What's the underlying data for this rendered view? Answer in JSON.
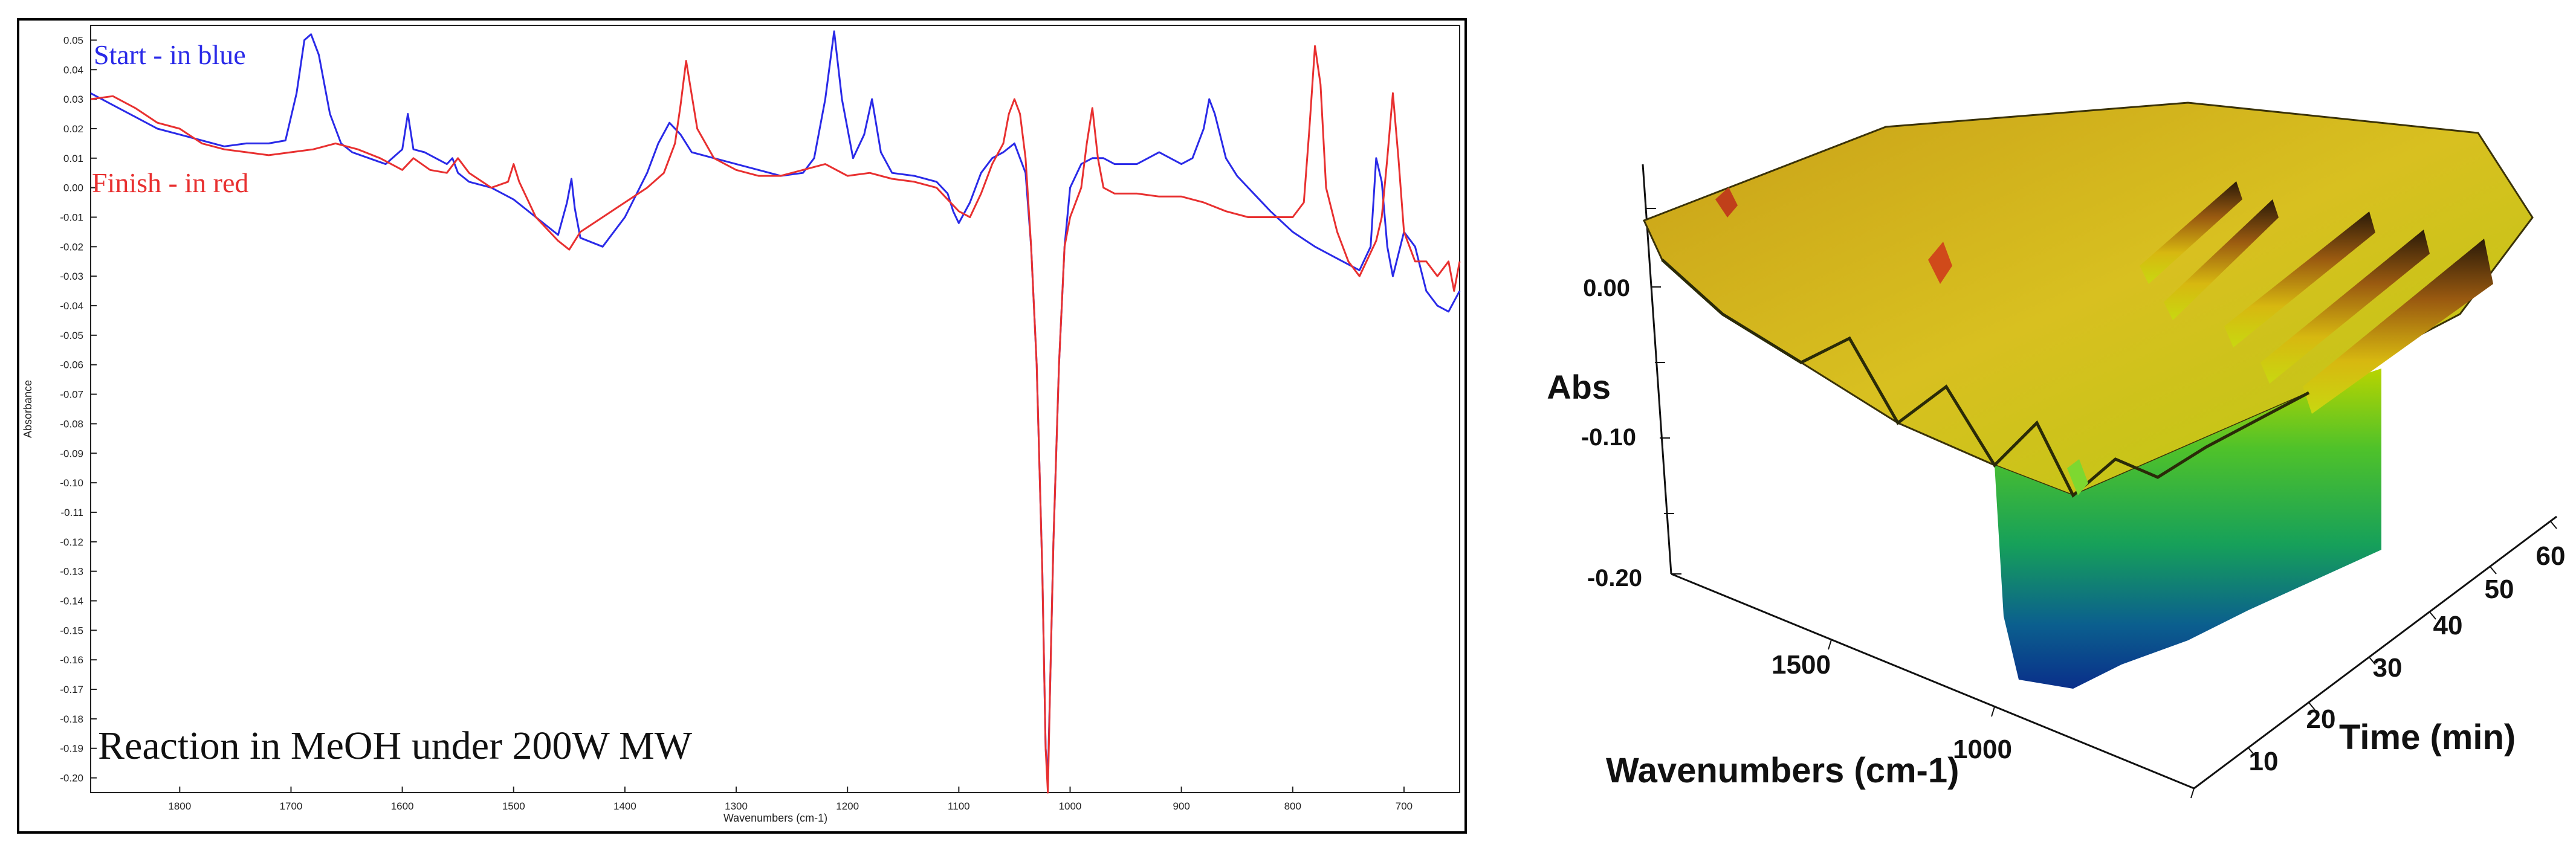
{
  "chart_data": [
    {
      "type": "line",
      "xlabel": "Wavenumbers (cm-1)",
      "ylabel": "Absorbance",
      "xlim": [
        1880,
        650
      ],
      "ylim": [
        -0.205,
        0.055
      ],
      "x_ticks": [
        "1800",
        "1700",
        "1600",
        "1500",
        "1400",
        "1300",
        "1200",
        "1100",
        "1000",
        "900",
        "800",
        "700"
      ],
      "y_ticks": [
        "0.05",
        "0.04",
        "0.03",
        "0.02",
        "0.01",
        "0.00",
        "-0.01",
        "-0.02",
        "-0.03",
        "-0.04",
        "-0.05",
        "-0.06",
        "-0.07",
        "-0.08",
        "-0.09",
        "-0.10",
        "-0.11",
        "-0.12",
        "-0.13",
        "-0.14",
        "-0.15",
        "-0.16",
        "-0.17",
        "-0.18",
        "-0.19",
        "-0.20"
      ],
      "annotation": "Reaction in MeOH under 200W MW",
      "grid": false,
      "series": [
        {
          "name": "Start - in blue",
          "color": "#2a2ae8",
          "x": [
            1880,
            1860,
            1840,
            1820,
            1800,
            1780,
            1760,
            1740,
            1720,
            1705,
            1695,
            1688,
            1682,
            1675,
            1665,
            1655,
            1645,
            1630,
            1615,
            1600,
            1595,
            1590,
            1580,
            1570,
            1560,
            1555,
            1550,
            1540,
            1520,
            1500,
            1480,
            1460,
            1452,
            1448,
            1445,
            1440,
            1420,
            1400,
            1380,
            1370,
            1360,
            1350,
            1340,
            1320,
            1300,
            1280,
            1260,
            1240,
            1230,
            1220,
            1212,
            1205,
            1195,
            1185,
            1178,
            1170,
            1160,
            1140,
            1120,
            1110,
            1105,
            1100,
            1090,
            1080,
            1070,
            1060,
            1050,
            1045,
            1040,
            1035,
            1030,
            1025,
            1022,
            1020,
            1018,
            1015,
            1010,
            1005,
            1000,
            990,
            980,
            970,
            960,
            940,
            920,
            900,
            890,
            880,
            875,
            870,
            860,
            850,
            840,
            820,
            800,
            780,
            760,
            740,
            730,
            725,
            720,
            715,
            710,
            700,
            690,
            680,
            670,
            660,
            650
          ],
          "y": [
            0.032,
            0.028,
            0.024,
            0.02,
            0.018,
            0.016,
            0.014,
            0.015,
            0.015,
            0.016,
            0.032,
            0.05,
            0.052,
            0.045,
            0.025,
            0.015,
            0.012,
            0.01,
            0.008,
            0.013,
            0.025,
            0.013,
            0.012,
            0.01,
            0.008,
            0.01,
            0.005,
            0.002,
            0,
            -0.004,
            -0.01,
            -0.016,
            -0.005,
            0.003,
            -0.007,
            -0.017,
            -0.02,
            -0.01,
            0.005,
            0.015,
            0.022,
            0.018,
            0.012,
            0.01,
            0.008,
            0.006,
            0.004,
            0.005,
            0.01,
            0.03,
            0.053,
            0.03,
            0.01,
            0.018,
            0.03,
            0.012,
            0.005,
            0.004,
            0.002,
            -0.002,
            -0.008,
            -0.012,
            -0.005,
            0.005,
            0.01,
            0.012,
            0.015,
            0.01,
            0.005,
            -0.02,
            -0.06,
            -0.13,
            -0.19,
            -0.2,
            -0.17,
            -0.12,
            -0.06,
            -0.02,
            0,
            0.008,
            0.01,
            0.01,
            0.008,
            0.008,
            0.012,
            0.008,
            0.01,
            0.02,
            0.03,
            0.025,
            0.01,
            0.004,
            0,
            -0.008,
            -0.015,
            -0.02,
            -0.024,
            -0.028,
            -0.02,
            0.01,
            0.002,
            -0.02,
            -0.03,
            -0.015,
            -0.02,
            -0.035,
            -0.04,
            -0.042,
            -0.035
          ]
        },
        {
          "name": "Finish - in red",
          "color": "#e83030",
          "x": [
            1880,
            1860,
            1840,
            1820,
            1800,
            1780,
            1760,
            1740,
            1720,
            1700,
            1680,
            1660,
            1640,
            1620,
            1600,
            1590,
            1575,
            1560,
            1550,
            1540,
            1520,
            1505,
            1500,
            1495,
            1480,
            1460,
            1450,
            1440,
            1420,
            1400,
            1380,
            1365,
            1355,
            1350,
            1345,
            1335,
            1320,
            1300,
            1280,
            1260,
            1240,
            1220,
            1200,
            1180,
            1160,
            1140,
            1120,
            1110,
            1100,
            1090,
            1080,
            1070,
            1060,
            1055,
            1050,
            1045,
            1040,
            1035,
            1030,
            1025,
            1022,
            1020,
            1018,
            1015,
            1010,
            1005,
            1000,
            990,
            985,
            980,
            975,
            970,
            960,
            940,
            920,
            900,
            880,
            860,
            840,
            820,
            800,
            790,
            785,
            780,
            775,
            770,
            760,
            750,
            740,
            730,
            725,
            720,
            715,
            710,
            705,
            700,
            695,
            690,
            680,
            670,
            660,
            655,
            650
          ],
          "y": [
            0.03,
            0.031,
            0.027,
            0.022,
            0.02,
            0.015,
            0.013,
            0.012,
            0.011,
            0.012,
            0.013,
            0.015,
            0.013,
            0.01,
            0.006,
            0.01,
            0.006,
            0.005,
            0.01,
            0.005,
            0,
            0.002,
            0.008,
            0.002,
            -0.01,
            -0.018,
            -0.021,
            -0.015,
            -0.01,
            -0.005,
            0,
            0.005,
            0.015,
            0.028,
            0.043,
            0.02,
            0.01,
            0.006,
            0.004,
            0.004,
            0.006,
            0.008,
            0.004,
            0.005,
            0.003,
            0.002,
            0,
            -0.004,
            -0.008,
            -0.01,
            -0.002,
            0.008,
            0.015,
            0.025,
            0.03,
            0.025,
            0.01,
            -0.02,
            -0.06,
            -0.13,
            -0.19,
            -0.205,
            -0.17,
            -0.12,
            -0.06,
            -0.02,
            -0.01,
            0,
            0.015,
            0.027,
            0.01,
            0,
            -0.002,
            -0.002,
            -0.003,
            -0.003,
            -0.005,
            -0.008,
            -0.01,
            -0.01,
            -0.01,
            -0.005,
            0.02,
            0.048,
            0.035,
            0,
            -0.015,
            -0.025,
            -0.03,
            -0.022,
            -0.018,
            -0.01,
            0.01,
            0.032,
            0.01,
            -0.015,
            -0.02,
            -0.025,
            -0.025,
            -0.03,
            -0.025,
            -0.035,
            -0.025
          ]
        }
      ]
    },
    {
      "type": "area",
      "xlabel": "Wavenumbers (cm-1)",
      "ylabel": "Abs",
      "zlabel": "Time (min)",
      "x_ticks": [
        "1500",
        "1000"
      ],
      "y_ticks": [
        "0.00",
        "-0.10",
        "-0.20"
      ],
      "z_ticks": [
        "10",
        "20",
        "30",
        "40",
        "50",
        "60"
      ],
      "grid": false
    }
  ]
}
